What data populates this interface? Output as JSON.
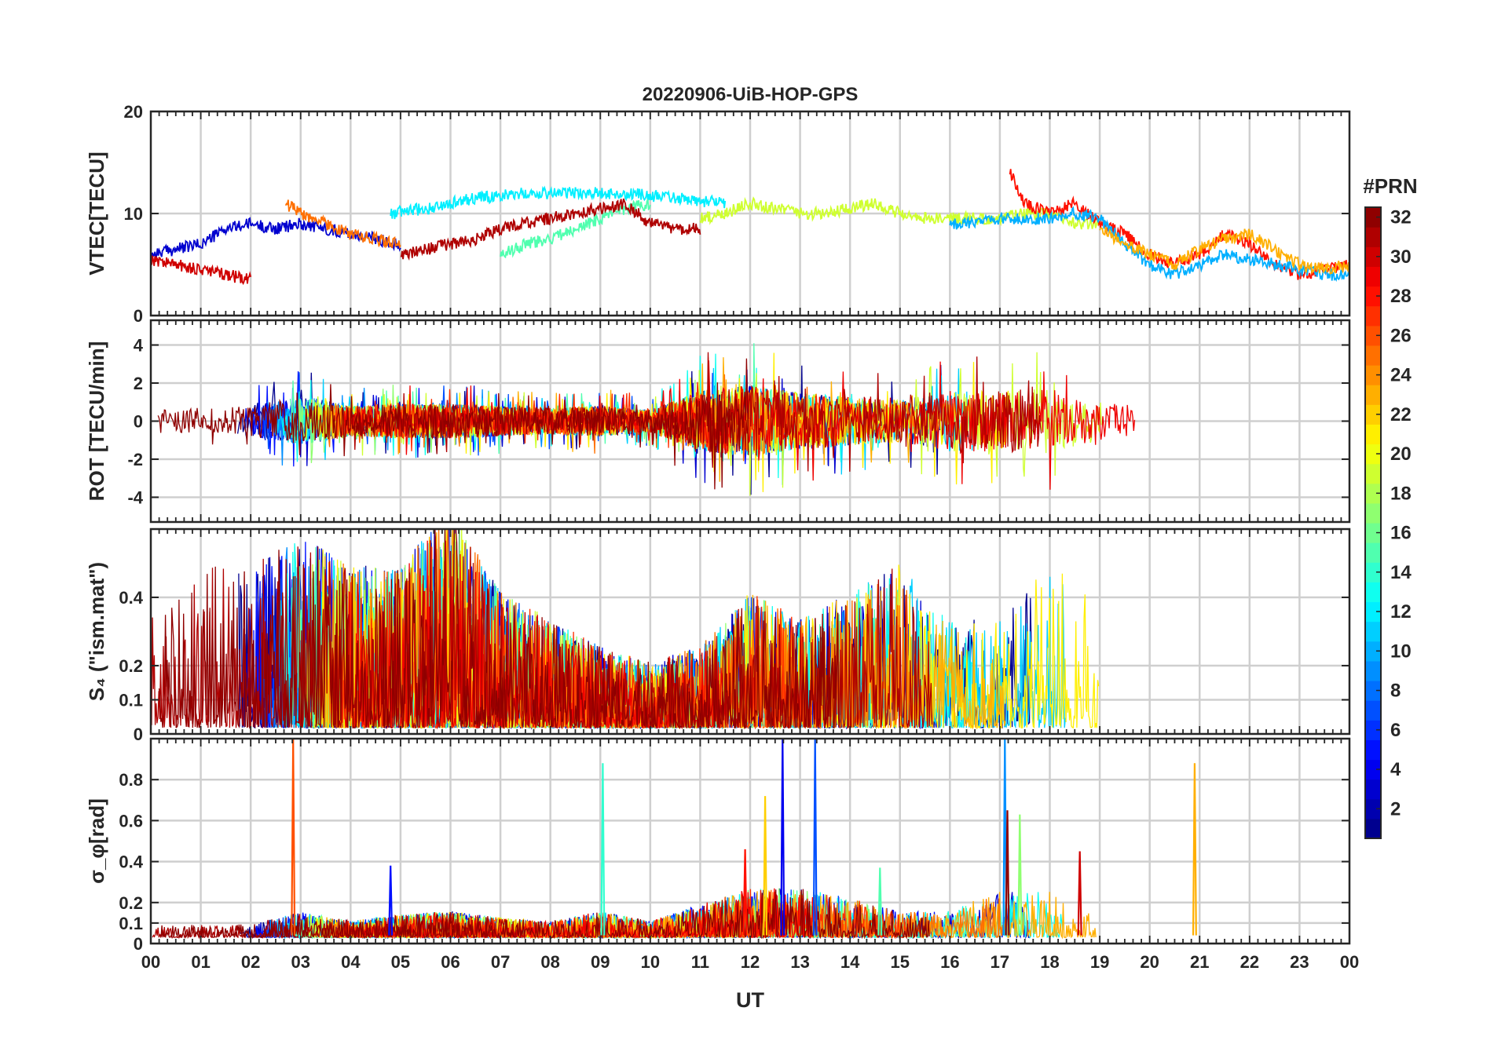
{
  "figure": {
    "title": "20220906-UiB-HOP-GPS",
    "xlabel": "UT",
    "x_ticks": [
      "00",
      "01",
      "02",
      "03",
      "04",
      "05",
      "06",
      "07",
      "08",
      "09",
      "10",
      "11",
      "12",
      "13",
      "14",
      "15",
      "16",
      "17",
      "18",
      "19",
      "20",
      "21",
      "22",
      "23",
      "00"
    ]
  },
  "colorbar": {
    "title": "#PRN",
    "range": [
      1,
      32
    ],
    "ticks": [
      2,
      4,
      6,
      8,
      10,
      12,
      14,
      16,
      18,
      20,
      22,
      24,
      26,
      28,
      30,
      32
    ],
    "colormap": "jet",
    "colors": [
      "#00008f",
      "#0000ff",
      "#0080ff",
      "#00ffff",
      "#80ff80",
      "#ffff00",
      "#ff8000",
      "#ff0000",
      "#800000"
    ]
  },
  "chart_data": [
    {
      "type": "line",
      "title": "20220906-UiB-HOP-GPS",
      "ylabel": "VTEC[TECU]",
      "xlabel": "",
      "xlim": [
        0,
        24
      ],
      "ylim": [
        0,
        20
      ],
      "yticks": [
        "0",
        "10",
        "20"
      ],
      "ytick_values": [
        0,
        10,
        20
      ],
      "grid": true,
      "series": [
        {
          "prn": 3,
          "x": [
            0,
            0.5,
            1,
            1.5,
            2,
            2.5,
            3,
            3.5,
            4,
            4.5,
            5
          ],
          "values": [
            6,
            6.5,
            7,
            8.5,
            9,
            8.5,
            9,
            8.5,
            8,
            7.5,
            7
          ]
        },
        {
          "prn": 30,
          "x": [
            0,
            0.5,
            1,
            1.5,
            2
          ],
          "values": [
            5.5,
            5,
            4.5,
            4,
            3.5
          ]
        },
        {
          "prn": 12,
          "x": [
            4.8,
            5.5,
            6.5,
            7.5,
            8.5,
            9.5,
            10.5,
            11.5
          ],
          "values": [
            10,
            10.5,
            11.5,
            12,
            12,
            12,
            11.5,
            11
          ]
        },
        {
          "prn": 15,
          "x": [
            7,
            7.5,
            8,
            8.5,
            9,
            9.5,
            10
          ],
          "values": [
            6,
            7,
            7.5,
            8.5,
            9.5,
            10.5,
            11
          ]
        },
        {
          "prn": 25,
          "x": [
            2.7,
            3,
            3.5,
            4,
            4.5,
            5
          ],
          "values": [
            11,
            10,
            9,
            8,
            7.5,
            7
          ]
        },
        {
          "prn": 31,
          "x": [
            5,
            5.5,
            6,
            6.5,
            7,
            7.5,
            8,
            8.5,
            9,
            9.5,
            10,
            10.5,
            11
          ],
          "values": [
            6,
            6.5,
            7,
            7.5,
            8.5,
            9,
            9.5,
            10,
            10.5,
            11,
            9,
            8.5,
            8.5
          ]
        },
        {
          "prn": 19,
          "x": [
            11,
            11.5,
            12,
            12.5,
            13,
            13.5,
            14,
            14.5,
            15,
            15.5,
            16,
            16.5,
            17,
            17.5,
            18,
            18.5,
            19
          ],
          "values": [
            9.5,
            10,
            11,
            10.5,
            10,
            10,
            10.5,
            11,
            10,
            9.5,
            9.5,
            9.5,
            9.5,
            10,
            10,
            9,
            9
          ]
        },
        {
          "prn": 28,
          "x": [
            17.2,
            17.5,
            18,
            18.5,
            19,
            19.5,
            20,
            20.5,
            21,
            21.5,
            22,
            22.5,
            23,
            23.5,
            24
          ],
          "values": [
            14,
            11,
            10,
            11,
            9,
            8,
            6,
            5,
            6,
            8,
            7,
            5,
            4,
            4.5,
            5
          ]
        },
        {
          "prn": 10,
          "x": [
            16,
            16.5,
            17,
            17.5,
            18,
            18.5,
            19,
            19.5,
            20,
            20.5,
            21,
            21.5,
            22,
            22.5,
            23,
            23.5,
            24
          ],
          "values": [
            9,
            9,
            9.5,
            9.5,
            9.5,
            10,
            9.5,
            7,
            5,
            4,
            5,
            6,
            5.5,
            5,
            4.5,
            4,
            4
          ]
        },
        {
          "prn": 23,
          "x": [
            19,
            19.5,
            20,
            20.5,
            21,
            21.5,
            22,
            22.5,
            23,
            23.5,
            24
          ],
          "values": [
            8.5,
            7,
            6,
            5,
            6.5,
            7.5,
            8,
            6.5,
            5,
            4.5,
            5
          ]
        }
      ]
    },
    {
      "type": "line",
      "ylabel": "ROT [TECU/min]",
      "xlabel": "",
      "xlim": [
        0,
        24
      ],
      "ylim": [
        -5.3,
        5.3
      ],
      "yticks": [
        "-4",
        "-2",
        "0",
        "2",
        "4"
      ],
      "ytick_values": [
        -4,
        -2,
        0,
        2,
        4
      ],
      "grid": true,
      "activity_envelope": {
        "x": [
          0,
          1,
          2,
          3,
          4,
          5,
          6,
          7,
          8,
          9,
          10,
          11,
          12,
          13,
          14,
          15,
          16,
          17,
          18,
          19,
          20,
          21,
          22,
          23,
          24
        ],
        "values": [
          0.6,
          0.7,
          0.8,
          1.3,
          0.8,
          0.9,
          0.9,
          0.8,
          0.7,
          0.8,
          0.6,
          1.6,
          1.9,
          1.5,
          1.3,
          1.1,
          1.6,
          1.6,
          1.7,
          1.0,
          0.8,
          0.9,
          0.8,
          0.6,
          0.5
        ]
      }
    },
    {
      "type": "line",
      "ylabel": "S₄ (\"ism.mat\")",
      "xlabel": "",
      "xlim": [
        0,
        24
      ],
      "ylim": [
        0,
        0.6
      ],
      "yticks": [
        "0",
        "0.1",
        "0.2",
        "0.4"
      ],
      "ytick_values": [
        0,
        0.1,
        0.2,
        0.4
      ],
      "grid": true,
      "activity_envelope": {
        "x": [
          0,
          1,
          2,
          3,
          4,
          5,
          6,
          7,
          8,
          9,
          10,
          11,
          12,
          13,
          14,
          15,
          16,
          17,
          18,
          19,
          20,
          21,
          22,
          23,
          24
        ],
        "values": [
          0.2,
          0.3,
          0.3,
          0.35,
          0.3,
          0.3,
          0.4,
          0.25,
          0.2,
          0.15,
          0.12,
          0.15,
          0.25,
          0.2,
          0.25,
          0.3,
          0.2,
          0.2,
          0.3,
          0.25,
          0.15,
          0.15,
          0.2,
          0.25,
          0.2
        ]
      }
    },
    {
      "type": "line",
      "ylabel": "σ_φ[rad]",
      "xlabel": "UT",
      "xlim": [
        0,
        24
      ],
      "ylim": [
        0,
        1
      ],
      "yticks": [
        "0",
        "0.1",
        "0.2",
        "0.4",
        "0.6",
        "0.8"
      ],
      "ytick_values": [
        0,
        0.1,
        0.2,
        0.4,
        0.6,
        0.8
      ],
      "grid": true,
      "activity_envelope": {
        "x": [
          0,
          1,
          2,
          3,
          4,
          5,
          6,
          7,
          8,
          9,
          10,
          11,
          12,
          13,
          14,
          15,
          16,
          17,
          18,
          19,
          20,
          21,
          22,
          23,
          24
        ],
        "values": [
          0.04,
          0.04,
          0.04,
          0.08,
          0.05,
          0.07,
          0.08,
          0.06,
          0.05,
          0.08,
          0.05,
          0.1,
          0.15,
          0.15,
          0.12,
          0.08,
          0.08,
          0.15,
          0.15,
          0.06,
          0.05,
          0.08,
          0.05,
          0.04,
          0.04
        ]
      },
      "spikes": [
        {
          "x": 2.85,
          "value": 1.0,
          "prn": 26
        },
        {
          "x": 4.8,
          "value": 0.38,
          "prn": 5
        },
        {
          "x": 9.05,
          "value": 0.88,
          "prn": 14
        },
        {
          "x": 11.9,
          "value": 0.46,
          "prn": 28
        },
        {
          "x": 12.3,
          "value": 0.72,
          "prn": 22
        },
        {
          "x": 12.65,
          "value": 1.0,
          "prn": 4
        },
        {
          "x": 13.3,
          "value": 1.0,
          "prn": 7
        },
        {
          "x": 14.6,
          "value": 0.37,
          "prn": 15
        },
        {
          "x": 17.1,
          "value": 1.0,
          "prn": 9
        },
        {
          "x": 17.15,
          "value": 0.65,
          "prn": 32
        },
        {
          "x": 17.4,
          "value": 0.63,
          "prn": 17
        },
        {
          "x": 18.6,
          "value": 0.45,
          "prn": 30
        },
        {
          "x": 20.9,
          "value": 0.88,
          "prn": 23
        }
      ]
    }
  ]
}
